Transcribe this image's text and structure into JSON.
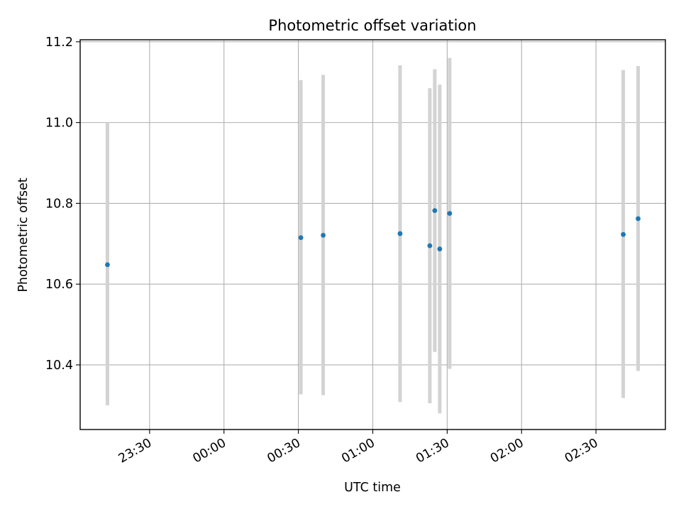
{
  "chart_data": {
    "type": "scatter",
    "title": "Photometric offset variation",
    "xlabel": "UTC time",
    "ylabel": "Photometric offset",
    "x_axis_type": "time",
    "xlim": [
      "23:02",
      "02:58"
    ],
    "ylim": [
      10.24,
      11.205
    ],
    "grid": true,
    "legend": "none",
    "x_ticks": [
      "23:30",
      "00:00",
      "00:30",
      "01:00",
      "01:30",
      "02:00",
      "02:30"
    ],
    "y_ticks": [
      "10.4",
      "10.6",
      "10.8",
      "11.0",
      "11.2"
    ],
    "series": [
      {
        "points": [
          {
            "x": "23:13",
            "y": 10.648,
            "err_low": 10.3,
            "err_high": 11.0
          },
          {
            "x": "00:31",
            "y": 10.715,
            "err_low": 10.327,
            "err_high": 11.105
          },
          {
            "x": "00:40",
            "y": 10.721,
            "err_low": 10.325,
            "err_high": 11.118
          },
          {
            "x": "01:11",
            "y": 10.725,
            "err_low": 10.308,
            "err_high": 11.142
          },
          {
            "x": "01:23",
            "y": 10.695,
            "err_low": 10.305,
            "err_high": 11.085
          },
          {
            "x": "01:25",
            "y": 10.782,
            "err_low": 10.432,
            "err_high": 11.132
          },
          {
            "x": "01:27",
            "y": 10.687,
            "err_low": 10.28,
            "err_high": 11.094
          },
          {
            "x": "01:31",
            "y": 10.775,
            "err_low": 10.39,
            "err_high": 11.16
          },
          {
            "x": "02:41",
            "y": 10.723,
            "err_low": 10.318,
            "err_high": 11.13
          },
          {
            "x": "02:47",
            "y": 10.762,
            "err_low": 10.385,
            "err_high": 11.14
          }
        ]
      }
    ],
    "colors": {
      "point": "#1f77b4",
      "errorbar": "#d3d3d3",
      "grid": "#b0b0b0",
      "axes": "#000000"
    }
  }
}
